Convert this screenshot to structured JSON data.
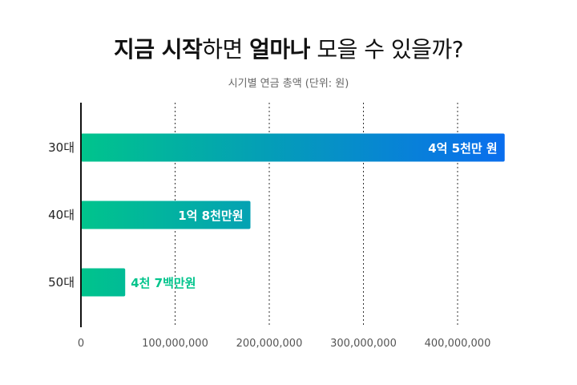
{
  "title": {
    "part1": "지금 시작",
    "part2": "하면 ",
    "part3": "얼마나",
    "part4": " 모을 수 있을까?"
  },
  "subtitle": "시기별 연금 총액 (단위: 원)",
  "colors": {
    "bar_start": "#00c48c",
    "bar_end": "#0a6cf0",
    "label_inside": "#ffffff",
    "label_outside": "#00c48c",
    "axis": "#111111",
    "grid": "#333333"
  },
  "chart_data": {
    "type": "bar",
    "orientation": "horizontal",
    "title": "",
    "categories": [
      "30대",
      "40대",
      "50대"
    ],
    "values": [
      450000000,
      180000000,
      47000000
    ],
    "data_labels": [
      "4억 5천만 원",
      "1억 8천만원",
      "4천 7백만원"
    ],
    "xlim": [
      0,
      480000000
    ],
    "xticks": [
      0,
      100000000,
      200000000,
      300000000,
      400000000
    ],
    "xtick_labels": [
      "0",
      "100,000,000",
      "200,000,000",
      "300,000,000",
      "400,000,000"
    ],
    "grid": "vertical dotted",
    "legend": "none"
  }
}
